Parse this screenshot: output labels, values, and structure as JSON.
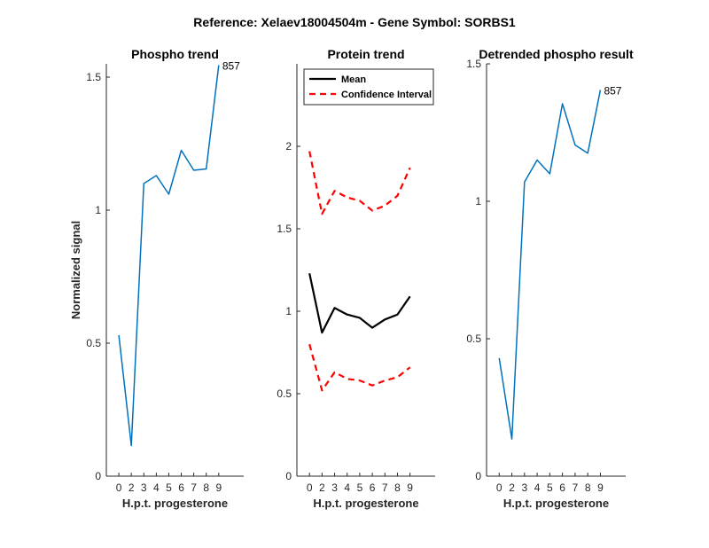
{
  "figure": {
    "suptitle": "Reference:  Xelaev18004504m - Gene Symbol:  SORBS1"
  },
  "chart_data": [
    {
      "type": "line",
      "title": "Phospho trend",
      "xlabel": "H.p.t. progesterone",
      "ylabel": "Normalized signal",
      "xlim": [
        -1,
        10
      ],
      "ylim": [
        0,
        1.55
      ],
      "xticks": [
        "0",
        "2",
        "3",
        "4",
        "5",
        "6",
        "7",
        "8",
        "9"
      ],
      "yticks": [
        "0",
        "0.5",
        "1",
        "1.5"
      ],
      "ytick_values": [
        0,
        0.5,
        1,
        1.5
      ],
      "series": [
        {
          "name": "857",
          "color": "#0072BD",
          "dash": "",
          "x": [
            0,
            1,
            2,
            3,
            4,
            5,
            6,
            7,
            8
          ],
          "values": [
            0.53,
            0.115,
            1.1,
            1.13,
            1.06,
            1.225,
            1.15,
            1.155,
            1.545
          ]
        }
      ],
      "annotation": {
        "text": "857",
        "x": 8,
        "y": 1.545
      }
    },
    {
      "type": "line",
      "title": "Protein trend",
      "xlabel": "H.p.t. progesterone",
      "ylabel": "",
      "xlim": [
        -1,
        10
      ],
      "ylim": [
        0,
        2.5
      ],
      "xticks": [
        "0",
        "2",
        "3",
        "4",
        "5",
        "6",
        "7",
        "8",
        "9"
      ],
      "yticks": [
        "0",
        "0.5",
        "1",
        "1.5",
        "2"
      ],
      "ytick_values": [
        0,
        0.5,
        1,
        1.5,
        2
      ],
      "series": [
        {
          "name": "Mean",
          "color": "#000000",
          "dash": "",
          "x": [
            0,
            1,
            2,
            3,
            4,
            5,
            6,
            7,
            8
          ],
          "values": [
            1.23,
            0.87,
            1.02,
            0.98,
            0.96,
            0.9,
            0.95,
            0.98,
            1.09
          ]
        },
        {
          "name": "Confidence Interval",
          "color": "#ff0000",
          "dash": "7,5",
          "x": [
            0,
            1,
            2,
            3,
            4,
            5,
            6,
            7,
            8
          ],
          "values": [
            1.97,
            1.59,
            1.73,
            1.69,
            1.67,
            1.61,
            1.64,
            1.7,
            1.87
          ]
        },
        {
          "name": "",
          "color": "#ff0000",
          "dash": "7,5",
          "x": [
            0,
            1,
            2,
            3,
            4,
            5,
            6,
            7,
            8
          ],
          "values": [
            0.8,
            0.52,
            0.63,
            0.59,
            0.58,
            0.55,
            0.58,
            0.6,
            0.66
          ]
        }
      ],
      "legend": {
        "position": "top-left",
        "entries": [
          {
            "label": "Mean",
            "color": "#000000",
            "dash": ""
          },
          {
            "label": "Confidence Interval",
            "color": "#ff0000",
            "dash": "7,5"
          }
        ]
      }
    },
    {
      "type": "line",
      "title": "Detrended phospho result",
      "xlabel": "H.p.t. progesterone",
      "ylabel": "",
      "xlim": [
        -1,
        10
      ],
      "ylim": [
        0,
        1.5
      ],
      "xticks": [
        "0",
        "2",
        "3",
        "4",
        "5",
        "6",
        "7",
        "8",
        "9"
      ],
      "yticks": [
        "0",
        "0.5",
        "1",
        "1.5"
      ],
      "ytick_values": [
        0,
        0.5,
        1,
        1.5
      ],
      "series": [
        {
          "name": "857",
          "color": "#0072BD",
          "dash": "",
          "x": [
            0,
            1,
            2,
            3,
            4,
            5,
            6,
            7,
            8
          ],
          "values": [
            0.43,
            0.135,
            1.07,
            1.15,
            1.1,
            1.355,
            1.205,
            1.175,
            1.405
          ]
        }
      ],
      "annotation": {
        "text": "857",
        "x": 8,
        "y": 1.405
      }
    }
  ]
}
